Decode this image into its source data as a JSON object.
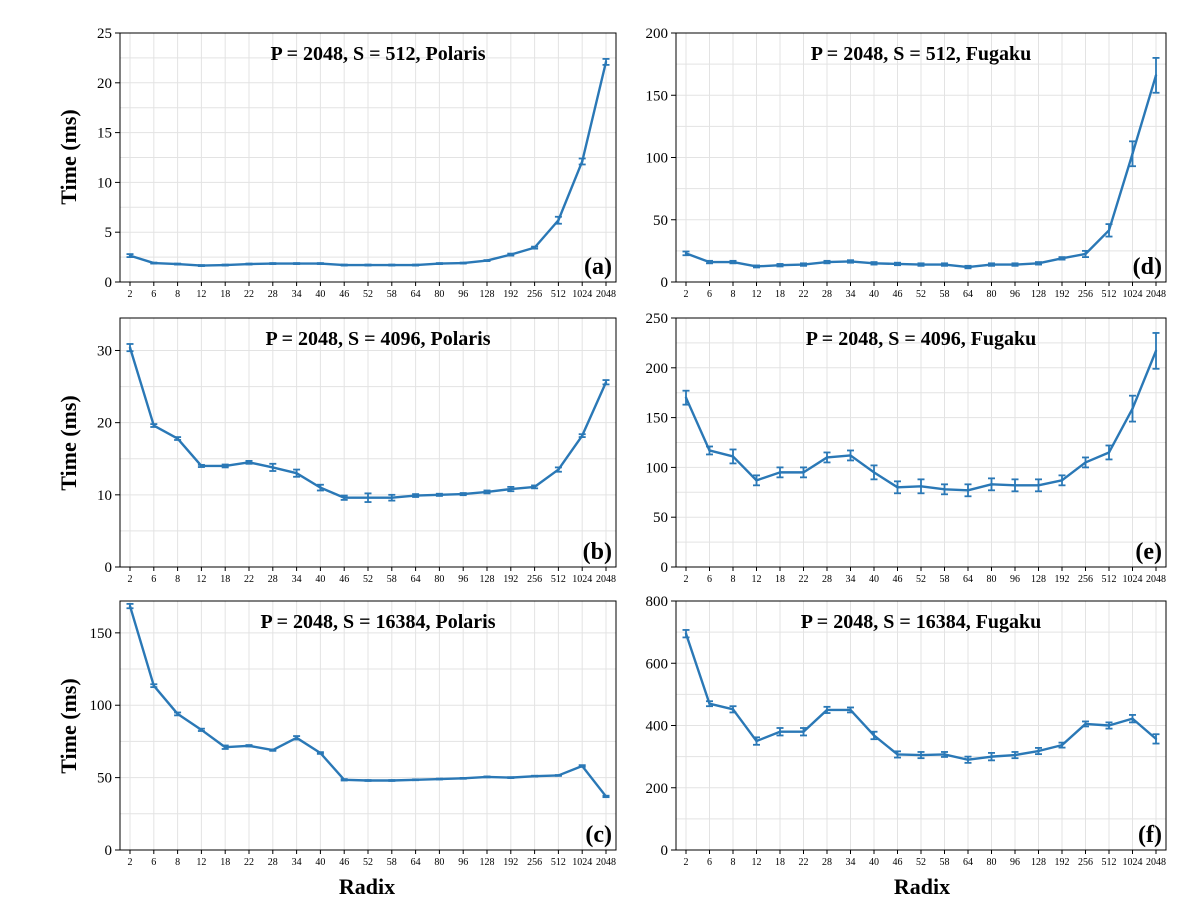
{
  "figure": {
    "xlabel": "Radix",
    "ylabel": "Time (ms)",
    "series_color": "#2a78b6"
  },
  "chart_data": [
    {
      "type": "line",
      "id": "a",
      "title": "P = 2048, S = 512, Polaris",
      "tag": "(a)",
      "categories": [
        "2",
        "6",
        "8",
        "12",
        "18",
        "22",
        "28",
        "34",
        "40",
        "46",
        "52",
        "58",
        "64",
        "80",
        "96",
        "128",
        "192",
        "256",
        "512",
        "1024",
        "2048"
      ],
      "values": [
        2.65,
        1.9,
        1.8,
        1.65,
        1.7,
        1.8,
        1.85,
        1.85,
        1.85,
        1.7,
        1.7,
        1.7,
        1.7,
        1.85,
        1.9,
        2.15,
        2.75,
        3.45,
        6.2,
        12.1,
        22.1
      ],
      "errors": [
        0.15,
        0.05,
        0.05,
        0.05,
        0.05,
        0.05,
        0.05,
        0.05,
        0.05,
        0.05,
        0.05,
        0.05,
        0.05,
        0.05,
        0.05,
        0.05,
        0.1,
        0.1,
        0.35,
        0.3,
        0.3
      ],
      "ylim": [
        0,
        25
      ],
      "yticks": [
        0,
        5,
        10,
        15,
        20,
        25
      ],
      "ytick_labels": [
        "0",
        "5",
        "10",
        "15",
        "20",
        "25"
      ]
    },
    {
      "type": "line",
      "id": "b",
      "title": "P = 2048, S = 4096, Polaris",
      "tag": "(b)",
      "categories": [
        "2",
        "6",
        "8",
        "12",
        "18",
        "22",
        "28",
        "34",
        "40",
        "46",
        "52",
        "58",
        "64",
        "80",
        "96",
        "128",
        "192",
        "256",
        "512",
        "1024",
        "2048"
      ],
      "values": [
        30.4,
        19.6,
        17.8,
        14.0,
        14.0,
        14.5,
        13.8,
        13.0,
        11.0,
        9.6,
        9.6,
        9.6,
        9.9,
        10.0,
        10.1,
        10.4,
        10.8,
        11.1,
        13.5,
        18.2,
        25.6
      ],
      "errors": [
        0.5,
        0.2,
        0.2,
        0.15,
        0.2,
        0.2,
        0.5,
        0.5,
        0.4,
        0.3,
        0.6,
        0.4,
        0.2,
        0.15,
        0.15,
        0.2,
        0.3,
        0.2,
        0.3,
        0.2,
        0.3
      ],
      "ylim": [
        0,
        34.5
      ],
      "yticks": [
        0,
        10,
        20,
        30
      ],
      "ytick_labels": [
        "0",
        "10",
        "20",
        "30"
      ]
    },
    {
      "type": "line",
      "id": "c",
      "title": "P = 2048, S = 16384, Polaris",
      "tag": "(c)",
      "categories": [
        "2",
        "6",
        "8",
        "12",
        "18",
        "22",
        "28",
        "34",
        "40",
        "46",
        "52",
        "58",
        "64",
        "80",
        "96",
        "128",
        "192",
        "256",
        "512",
        "1024",
        "2048"
      ],
      "values": [
        168.5,
        113.5,
        94.0,
        83.0,
        71.0,
        72.0,
        69.0,
        77.5,
        67.0,
        48.5,
        48.0,
        48.0,
        48.5,
        49.0,
        49.5,
        50.5,
        50.0,
        51.0,
        51.5,
        58.0,
        37.0
      ],
      "errors": [
        1.5,
        1.0,
        1.0,
        0.8,
        1.2,
        0.5,
        0.5,
        1.2,
        0.6,
        0.5,
        0.3,
        0.3,
        0.3,
        0.3,
        0.3,
        0.3,
        0.3,
        0.3,
        0.3,
        0.6,
        0.5
      ],
      "ylim": [
        0,
        172
      ],
      "yticks": [
        0,
        50,
        100,
        150
      ],
      "ytick_labels": [
        "0",
        "50",
        "100",
        "150"
      ]
    },
    {
      "type": "line",
      "id": "d",
      "title": "P = 2048, S = 512, Fugaku",
      "tag": "(d)",
      "categories": [
        "2",
        "6",
        "8",
        "12",
        "18",
        "22",
        "28",
        "34",
        "40",
        "46",
        "52",
        "58",
        "64",
        "80",
        "96",
        "128",
        "192",
        "256",
        "512",
        "1024",
        "2048"
      ],
      "values": [
        23.0,
        16.0,
        16.0,
        12.5,
        13.5,
        14.0,
        16.0,
        16.5,
        15.0,
        14.5,
        14.0,
        14.0,
        12.0,
        14.0,
        14.0,
        15.0,
        19.0,
        22.5,
        41.5,
        103.0,
        166.0
      ],
      "errors": [
        1.5,
        1.0,
        1.0,
        0.8,
        1.0,
        1.0,
        1.0,
        1.0,
        1.0,
        1.0,
        1.0,
        1.0,
        1.0,
        1.0,
        1.0,
        1.0,
        1.0,
        2.5,
        5.0,
        10.0,
        14.0
      ],
      "ylim": [
        0,
        200
      ],
      "yticks": [
        0,
        50,
        100,
        150,
        200
      ],
      "ytick_labels": [
        "0",
        "50",
        "100",
        "150",
        "200"
      ]
    },
    {
      "type": "line",
      "id": "e",
      "title": "P = 2048, S = 4096, Fugaku",
      "tag": "(e)",
      "categories": [
        "2",
        "6",
        "8",
        "12",
        "18",
        "22",
        "28",
        "34",
        "40",
        "46",
        "52",
        "58",
        "64",
        "80",
        "96",
        "128",
        "192",
        "256",
        "512",
        "1024",
        "2048"
      ],
      "values": [
        170.0,
        117.0,
        111.0,
        87.0,
        95.0,
        95.0,
        110.0,
        112.0,
        95.0,
        80.0,
        81.0,
        78.0,
        77.0,
        83.0,
        82.0,
        82.0,
        87.0,
        105.0,
        115.0,
        159.0,
        217.0
      ],
      "errors": [
        7.0,
        4.0,
        7.0,
        5.0,
        5.0,
        5.0,
        5.0,
        5.0,
        7.0,
        6.0,
        7.0,
        5.0,
        6.0,
        6.0,
        6.0,
        6.0,
        5.0,
        5.0,
        7.0,
        13.0,
        18.0
      ],
      "ylim": [
        0,
        250
      ],
      "yticks": [
        0,
        50,
        100,
        150,
        200,
        250
      ],
      "ytick_labels": [
        "0",
        "50",
        "100",
        "150",
        "200",
        "250"
      ]
    },
    {
      "type": "line",
      "id": "f",
      "title": "P = 2048, S = 16384, Fugaku",
      "tag": "(f)",
      "categories": [
        "2",
        "6",
        "8",
        "12",
        "18",
        "22",
        "28",
        "34",
        "40",
        "46",
        "52",
        "58",
        "64",
        "80",
        "96",
        "128",
        "192",
        "256",
        "512",
        "1024",
        "2048"
      ],
      "values": [
        695.0,
        470.0,
        452.0,
        350.0,
        380.0,
        380.0,
        450.0,
        450.0,
        368.0,
        307.0,
        305.0,
        307.0,
        290.0,
        300.0,
        305.0,
        318.0,
        337.0,
        405.0,
        400.0,
        422.0,
        357.0
      ],
      "errors": [
        12.0,
        8.0,
        10.0,
        12.0,
        12.0,
        12.0,
        10.0,
        8.0,
        12.0,
        10.0,
        10.0,
        8.0,
        10.0,
        12.0,
        10.0,
        10.0,
        8.0,
        8.0,
        10.0,
        12.0,
        15.0
      ],
      "ylim": [
        0,
        800
      ],
      "yticks": [
        0,
        200,
        400,
        600,
        800
      ],
      "ytick_labels": [
        "0",
        "200",
        "400",
        "600",
        "800"
      ]
    }
  ]
}
